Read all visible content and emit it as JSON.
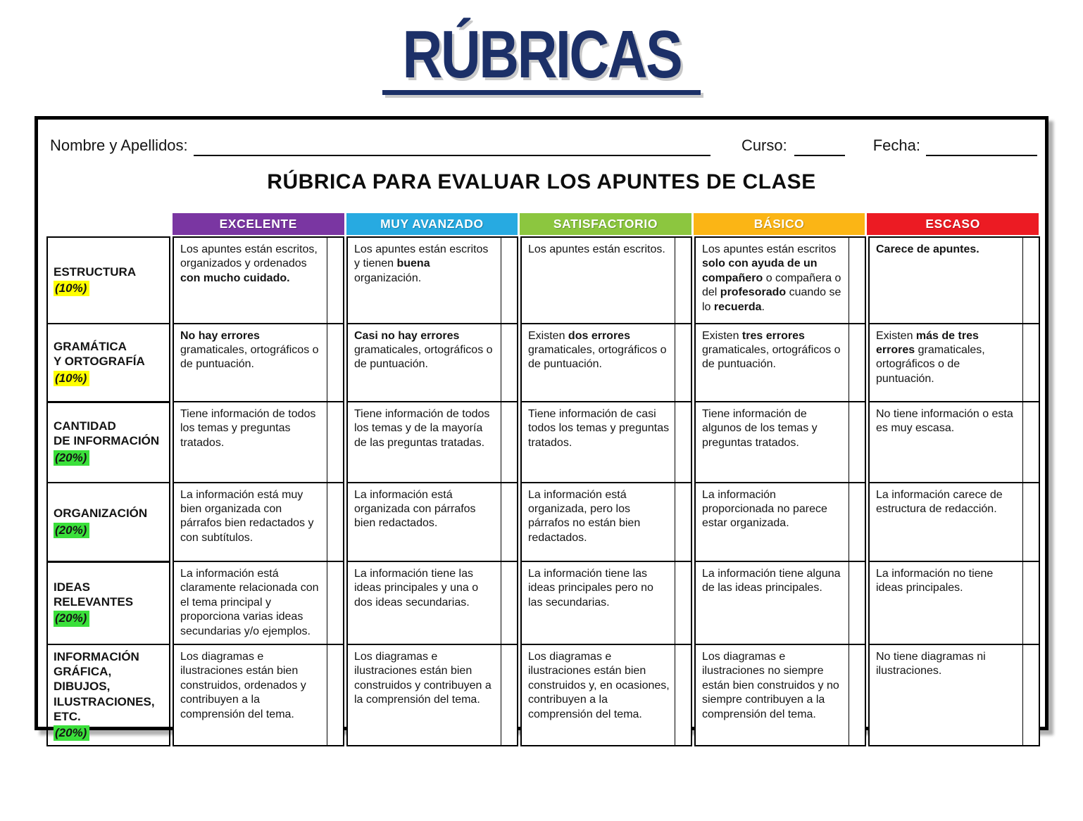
{
  "page_title": "RÚBRICAS",
  "form": {
    "name_label": "Nombre y Apellidos:",
    "course_label": "Curso:",
    "date_label": "Fecha:"
  },
  "table": {
    "title": "RÚBRICA PARA EVALUAR LOS APUNTES DE CLASE",
    "accent_colors": {
      "title_navy": "#1c3068",
      "yellow_highlight": "#ffff00",
      "green_highlight": "#3be03b"
    },
    "columns": [
      {
        "label": "EXCELENTE",
        "color": "#7a36a2"
      },
      {
        "label": "MUY AVANZADO",
        "color": "#27aae1"
      },
      {
        "label": "SATISFACTORIO",
        "color": "#8cc63f"
      },
      {
        "label": "BÁSICO",
        "color": "#fbb515"
      },
      {
        "label": "ESCASO",
        "color": "#ec1b23"
      }
    ],
    "rows": [
      {
        "criterion": "ESTRUCTURA",
        "weight": "(10%)",
        "weight_highlight": "#ffff00",
        "cells": [
          "Los apuntes están escritos, organizados y ordenados **con mucho cuidado.**",
          "Los apuntes están escritos y tienen **buena** organización.",
          "Los apuntes están escritos.",
          "Los apuntes están escritos **solo con ayuda de un compañero** o compañera o del **profesorado** cuando se lo **recuerda**.",
          "**Carece de apuntes.**"
        ]
      },
      {
        "criterion": "GRAMÁTICA\nY ORTOGRAFÍA",
        "weight": "(10%)",
        "weight_highlight": "#ffff00",
        "cells": [
          "**No hay errores** gramaticales, ortográficos o de puntuación.",
          "**Casi no hay errores** gramaticales, ortográficos o de puntuación.",
          "Existen **dos errores** gramaticales, ortográficos o de puntuación.",
          "Existen **tres errores** gramaticales, ortográficos o de puntuación.",
          "Existen **más de tres errores** gramaticales, ortográficos o de puntuación."
        ]
      },
      {
        "criterion": "CANTIDAD\nDE INFORMACIÓN",
        "weight": "(20%)",
        "weight_highlight": "#3be03b",
        "cells": [
          "Tiene información de todos los temas y preguntas tratados.",
          "Tiene información de todos los temas y de la mayoría de las preguntas tratadas.",
          "Tiene información de casi todos los temas y preguntas tratados.",
          "Tiene información de algunos de los temas y preguntas tratados.",
          "No tiene información o esta es muy escasa."
        ]
      },
      {
        "criterion": "ORGANIZACIÓN",
        "weight": "(20%)",
        "weight_highlight": "#3be03b",
        "cells": [
          "La información está muy bien organizada con párrafos bien redactados y con subtítulos.",
          "La información está organizada con párrafos bien redactados.",
          "La información está organizada, pero los párrafos no están bien redactados.",
          "La información proporcionada no parece estar organizada.",
          "La información carece de estructura de redacción."
        ]
      },
      {
        "criterion": "IDEAS\nRELEVANTES",
        "weight": "(20%)",
        "weight_highlight": "#3be03b",
        "cells": [
          "La información está claramente relacionada con el tema principal y proporciona varias ideas secundarias y/o ejemplos.",
          "La información tiene las ideas principales y una o dos ideas secundarias.",
          "La información tiene las ideas principales pero no las secundarias.",
          "La información tiene alguna de las ideas principales.",
          "La información no tiene ideas principales."
        ]
      },
      {
        "criterion": "INFORMACIÓN\nGRÁFICA, DIBUJOS,\nILUSTRACIONES,\nETC.",
        "weight": "(20%)",
        "weight_highlight": "#3be03b",
        "cells": [
          "Los diagramas e ilustraciones están bien construidos, ordenados y contribuyen a la comprensión del tema.",
          "Los diagramas e ilustraciones están bien construidos y contribuyen a la comprensión del tema.",
          "Los diagramas e ilustraciones están bien construidos y, en ocasiones, contribuyen a la comprensión del tema.",
          "Los diagramas e ilustraciones no siempre están bien construidos y no siempre contribuyen a la comprensión del tema.",
          "No tiene diagramas ni ilustraciones."
        ]
      }
    ]
  }
}
